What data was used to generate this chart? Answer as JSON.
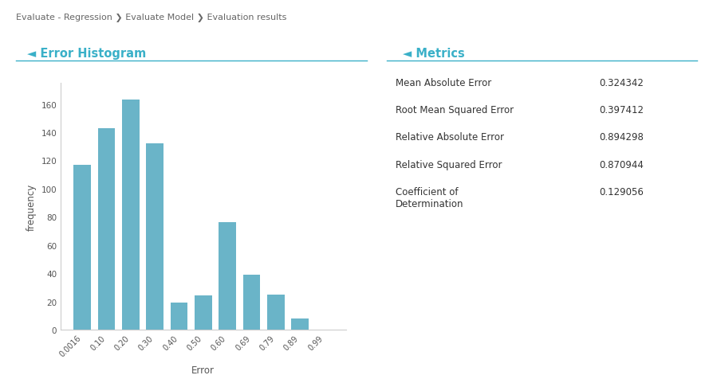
{
  "breadcrumb": "Evaluate - Regression ❯ Evaluate Model ❯ Evaluation results",
  "breadcrumb_color": "#666666",
  "background_color": "#ffffff",
  "histogram_title": "Error Histogram",
  "histogram_title_color": "#3ab0c8",
  "section_title_color": "#3ab0c8",
  "section_line_color": "#3ab0c8",
  "bar_labels": [
    "0.0016",
    "0.10",
    "0.20",
    "0.30",
    "0.40",
    "0.50",
    "0.60",
    "0.69",
    "0.79",
    "0.89",
    "0.99"
  ],
  "bar_values": [
    117,
    143,
    163,
    132,
    19,
    24,
    76,
    39,
    25,
    8,
    0
  ],
  "bar_color": "#6ab4c8",
  "xlabel": "Error",
  "ylabel": "frequency",
  "ylim": [
    0,
    175
  ],
  "yticks": [
    0,
    20,
    40,
    60,
    80,
    100,
    120,
    140,
    160
  ],
  "metrics_title": "Metrics",
  "metrics": [
    [
      "Mean Absolute Error",
      "0.324342"
    ],
    [
      "Root Mean Squared Error",
      "0.397412"
    ],
    [
      "Relative Absolute Error",
      "0.894298"
    ],
    [
      "Relative Squared Error",
      "0.870944"
    ],
    [
      "Coefficient of\nDetermination",
      "0.129056"
    ]
  ],
  "metrics_label_color": "#333333",
  "metrics_value_color": "#333333",
  "metrics_line_color": "#3ab0c8"
}
